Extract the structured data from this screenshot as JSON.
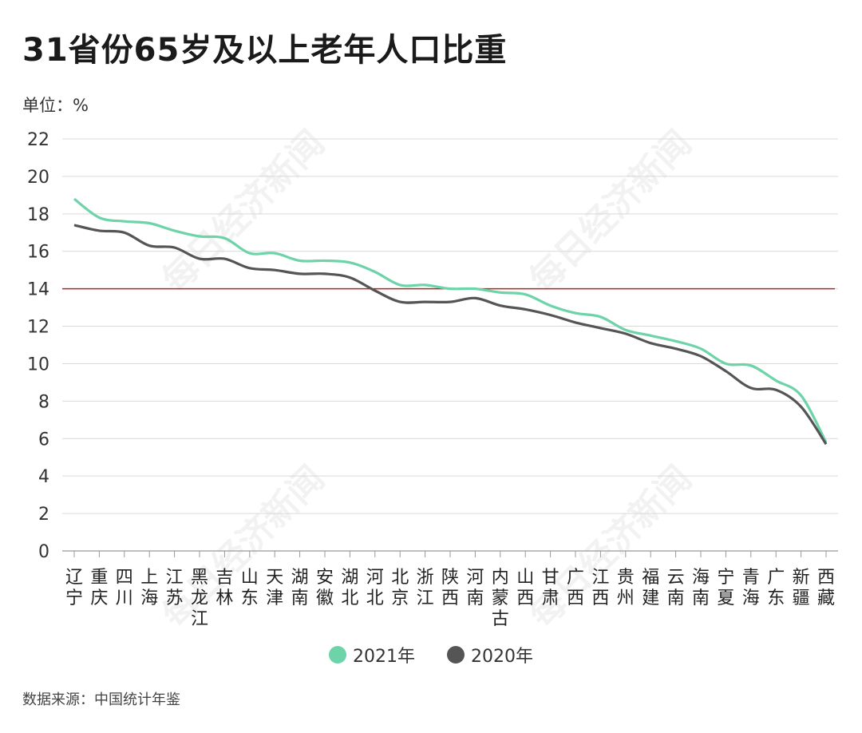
{
  "title": "31省份65岁及以上老年人口比重",
  "unit_label": "单位：%",
  "source": "数据来源：中国统计年鉴",
  "watermark_text": "每日经济新闻",
  "colors": {
    "series_2021": "#6dd3a8",
    "series_2020": "#555555",
    "reference_line": "#c0201e",
    "grid": "#d9d9d9"
  },
  "chart_data": {
    "type": "line",
    "categories": [
      "辽宁",
      "重庆",
      "四川",
      "上海",
      "江苏",
      "黑龙江",
      "吉林",
      "山东",
      "天津",
      "湖南",
      "安徽",
      "湖北",
      "河北",
      "北京",
      "浙江",
      "陕西",
      "河南",
      "内蒙古",
      "山西",
      "甘肃",
      "广西",
      "江西",
      "贵州",
      "福建",
      "云南",
      "海南",
      "宁夏",
      "青海",
      "广东",
      "新疆",
      "西藏"
    ],
    "series": [
      {
        "name": "2021年",
        "values": [
          18.8,
          17.8,
          17.6,
          17.5,
          17.1,
          16.8,
          16.7,
          15.9,
          15.9,
          15.5,
          15.5,
          15.4,
          14.9,
          14.2,
          14.2,
          14.0,
          14.0,
          13.8,
          13.7,
          13.1,
          12.7,
          12.5,
          11.8,
          11.5,
          11.2,
          10.8,
          10.0,
          9.9,
          9.1,
          8.3,
          5.8
        ]
      },
      {
        "name": "2020年",
        "values": [
          17.4,
          17.1,
          17.0,
          16.3,
          16.2,
          15.6,
          15.6,
          15.1,
          15.0,
          14.8,
          14.8,
          14.6,
          13.9,
          13.3,
          13.3,
          13.3,
          13.5,
          13.1,
          12.9,
          12.6,
          12.2,
          11.9,
          11.6,
          11.1,
          10.8,
          10.4,
          9.6,
          8.7,
          8.6,
          7.7,
          5.7
        ]
      }
    ],
    "reference_line": 14,
    "ylim": [
      0,
      22
    ],
    "yticks": [
      0,
      2,
      4,
      6,
      8,
      10,
      12,
      14,
      16,
      18,
      20,
      22
    ],
    "grid": true,
    "legend_position": "bottom-center"
  }
}
